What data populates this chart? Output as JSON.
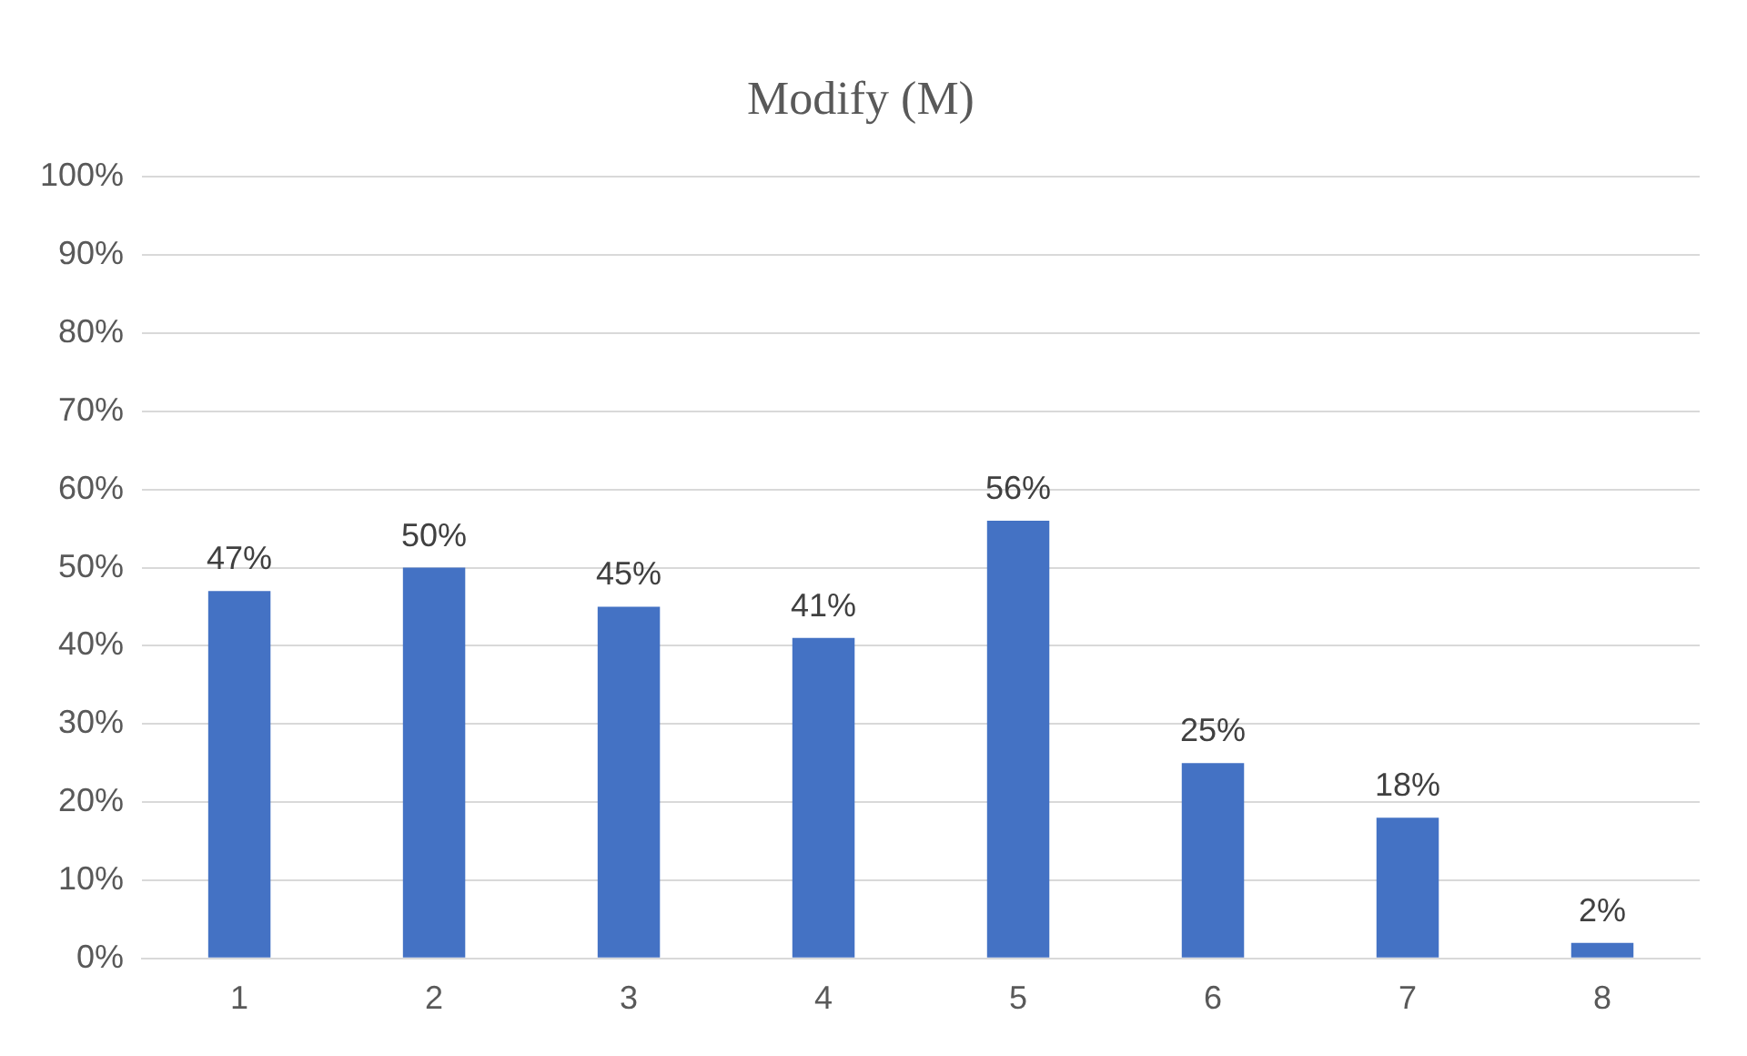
{
  "chart_data": {
    "type": "bar",
    "title": "Modify (M)",
    "categories": [
      "1",
      "2",
      "3",
      "4",
      "5",
      "6",
      "7",
      "8"
    ],
    "values": [
      47,
      50,
      45,
      41,
      56,
      25,
      18,
      2
    ],
    "value_labels": [
      "47%",
      "50%",
      "45%",
      "41%",
      "56%",
      "25%",
      "18%",
      "2%"
    ],
    "color": "#4472c4",
    "ylim": [
      0,
      100
    ],
    "yticks": [
      {
        "value": 0,
        "label": "0%"
      },
      {
        "value": 10,
        "label": "10%"
      },
      {
        "value": 20,
        "label": "20%"
      },
      {
        "value": 30,
        "label": "30%"
      },
      {
        "value": 40,
        "label": "40%"
      },
      {
        "value": 50,
        "label": "50%"
      },
      {
        "value": 60,
        "label": "60%"
      },
      {
        "value": 70,
        "label": "70%"
      },
      {
        "value": 80,
        "label": "80%"
      },
      {
        "value": 90,
        "label": "90%"
      },
      {
        "value": 100,
        "label": "100%"
      }
    ],
    "grid": "y",
    "legend": false
  }
}
